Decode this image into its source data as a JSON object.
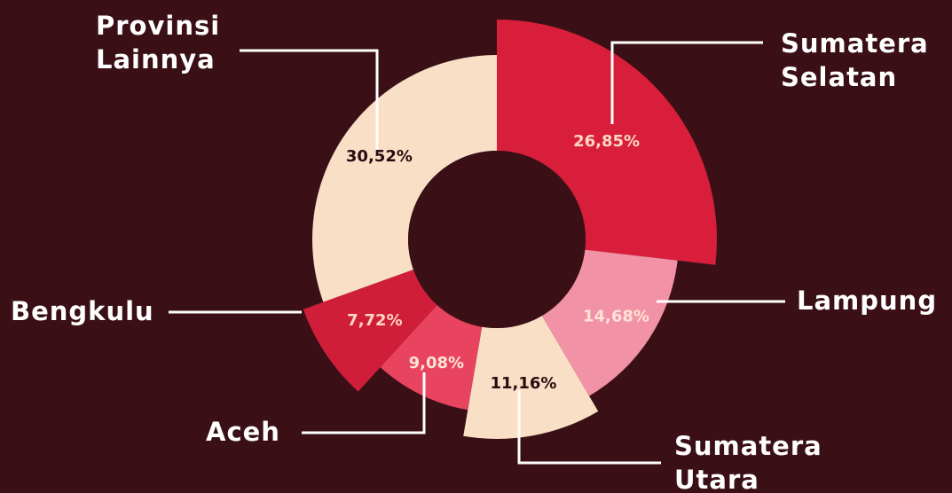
{
  "chart_data": {
    "type": "pie",
    "categories": [
      "Sumatera Selatan",
      "Lampung",
      "Sumatera Utara",
      "Aceh",
      "Bengkulu",
      "Provinsi Lainnya"
    ],
    "values": [
      26.85,
      14.68,
      11.16,
      9.08,
      7.72,
      30.52
    ],
    "value_labels": [
      "26,85%",
      "14,68%",
      "11,16%",
      "9,08%",
      "7,72%",
      "30,52%"
    ],
    "colors": [
      "#d81e3a",
      "#f192a6",
      "#f9dfc6",
      "#e8445f",
      "#d01e3a",
      "#f9dfc6"
    ]
  }
}
